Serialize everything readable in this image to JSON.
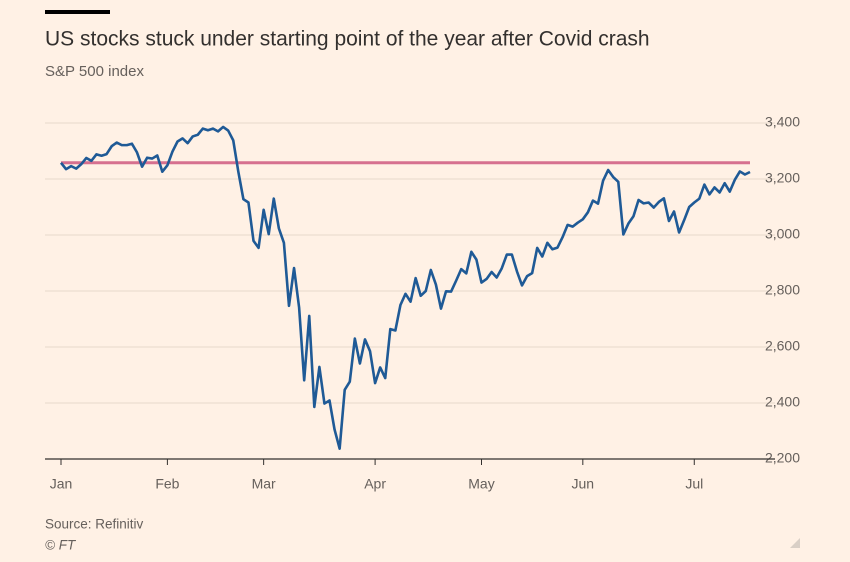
{
  "chart_data": {
    "type": "line",
    "title": "US stocks stuck under starting point of the year after Covid crash",
    "subtitle": "S&P 500 index",
    "source": "Source: Refinitiv",
    "copyright": "© FT",
    "ylim": [
      2200,
      3400
    ],
    "yticks": [
      {
        "value": 2200,
        "label": "2,200"
      },
      {
        "value": 2400,
        "label": "2,400"
      },
      {
        "value": 2600,
        "label": "2,600"
      },
      {
        "value": 2800,
        "label": "2,800"
      },
      {
        "value": 3000,
        "label": "3,000"
      },
      {
        "value": 3200,
        "label": "3,200"
      },
      {
        "value": 3400,
        "label": "3,400"
      }
    ],
    "grid": true,
    "color": "#1f5a96",
    "reference_line": {
      "value": 3258,
      "color": "#d6708f"
    },
    "months": [
      {
        "label": "Jan",
        "values": [
          3258,
          3235,
          3246,
          3237,
          3253,
          3275,
          3265,
          3288,
          3283,
          3289,
          3317,
          3330,
          3321,
          3321,
          3326,
          3295,
          3244,
          3276,
          3273,
          3284,
          3226
        ]
      },
      {
        "label": "Feb",
        "values": [
          3249,
          3298,
          3334,
          3345,
          3328,
          3352,
          3358,
          3380,
          3374,
          3380,
          3370,
          3386,
          3373,
          3338,
          3226,
          3128,
          3116,
          2979,
          2954
        ]
      },
      {
        "label": "Mar",
        "values": [
          3090,
          3003,
          3130,
          3024,
          2972,
          2747,
          2882,
          2741,
          2481,
          2711,
          2386,
          2529,
          2398,
          2409,
          2305,
          2237,
          2447,
          2476,
          2630,
          2541,
          2627,
          2585
        ]
      },
      {
        "label": "Apr",
        "values": [
          2471,
          2527,
          2489,
          2664,
          2659,
          2750,
          2790,
          2762,
          2846,
          2783,
          2800,
          2875,
          2823,
          2737,
          2799,
          2798,
          2837,
          2878,
          2863,
          2940,
          2912
        ]
      },
      {
        "label": "May",
        "values": [
          2830,
          2843,
          2868,
          2848,
          2881,
          2930,
          2930,
          2870,
          2820,
          2853,
          2864,
          2954,
          2923,
          2972,
          2949,
          2955,
          2992,
          3036,
          3030,
          3044
        ]
      },
      {
        "label": "Jun",
        "values": [
          3056,
          3081,
          3123,
          3112,
          3194,
          3232,
          3207,
          3190,
          3002,
          3041,
          3067,
          3125,
          3113,
          3116,
          3098,
          3118,
          3131,
          3050,
          3084,
          3009,
          3053,
          3100
        ]
      },
      {
        "label": "Jul",
        "values": [
          3116,
          3130,
          3180,
          3145,
          3170,
          3152,
          3185,
          3155,
          3197,
          3227,
          3216,
          3225
        ]
      }
    ]
  }
}
